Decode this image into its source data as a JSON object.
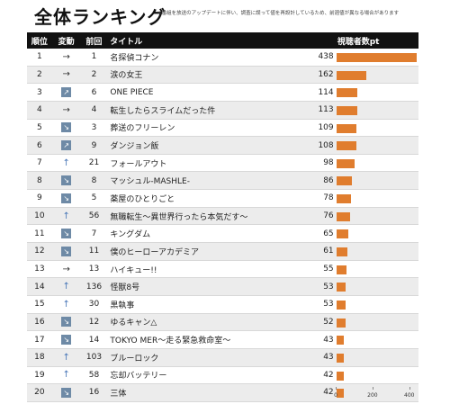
{
  "title": "全体ランキング",
  "note": "※番組を放送のアップデートに伴い、調査に誤って値を再設計しているため、前週値が異なる場合があります",
  "headers": {
    "rank": "順位",
    "move": "変動",
    "prev": "前回",
    "title": "タイトル",
    "value": "視聴者数pt"
  },
  "chart_data": {
    "type": "bar",
    "orientation": "horizontal",
    "title": "全体ランキング",
    "xlabel": "",
    "ylabel": "視聴者数pt",
    "xlim": [
      0,
      450
    ],
    "xticks": [
      0,
      200,
      400
    ],
    "bar_color": "#e07d2e",
    "rows": [
      {
        "rank": "1",
        "move": "→",
        "prev": "1",
        "title": "名探偵コナン",
        "value": 438
      },
      {
        "rank": "2",
        "move": "→",
        "prev": "2",
        "title": "涙の女王",
        "value": 162
      },
      {
        "rank": "3",
        "move": "↗",
        "prev": "6",
        "title": "ONE PIECE",
        "value": 114
      },
      {
        "rank": "4",
        "move": "→",
        "prev": "4",
        "title": "転生したらスライムだった件",
        "value": 113
      },
      {
        "rank": "5",
        "move": "↘",
        "prev": "3",
        "title": "葬送のフリーレン",
        "value": 109
      },
      {
        "rank": "6",
        "move": "↗",
        "prev": "9",
        "title": "ダンジョン飯",
        "value": 108
      },
      {
        "rank": "7",
        "move": "↑",
        "prev": "21",
        "title": "フォールアウト",
        "value": 98
      },
      {
        "rank": "8",
        "move": "↘",
        "prev": "8",
        "title": "マッシュル-MASHLE-",
        "value": 86
      },
      {
        "rank": "9",
        "move": "↘",
        "prev": "5",
        "title": "薬屋のひとりごと",
        "value": 78
      },
      {
        "rank": "10",
        "move": "↑",
        "prev": "56",
        "title": "無職転生～異世界行ったら本気だす～",
        "value": 76
      },
      {
        "rank": "11",
        "move": "↘",
        "prev": "7",
        "title": "キングダム",
        "value": 65
      },
      {
        "rank": "12",
        "move": "↘",
        "prev": "11",
        "title": "僕のヒーローアカデミア",
        "value": 61
      },
      {
        "rank": "13",
        "move": "→",
        "prev": "13",
        "title": "ハイキュー!!",
        "value": 55
      },
      {
        "rank": "14",
        "move": "↑",
        "prev": "136",
        "title": "怪獣8号",
        "value": 53
      },
      {
        "rank": "15",
        "move": "↑",
        "prev": "30",
        "title": "黒執事",
        "value": 53
      },
      {
        "rank": "16",
        "move": "↘",
        "prev": "12",
        "title": "ゆるキャン△",
        "value": 52
      },
      {
        "rank": "17",
        "move": "↘",
        "prev": "14",
        "title": "TOKYO MER～走る緊急救命室～",
        "value": 43
      },
      {
        "rank": "18",
        "move": "↑",
        "prev": "103",
        "title": "ブルーロック",
        "value": 43
      },
      {
        "rank": "19",
        "move": "↑",
        "prev": "58",
        "title": "忘却バッテリー",
        "value": 42
      },
      {
        "rank": "20",
        "move": "↘",
        "prev": "16",
        "title": "三体",
        "value": 42
      }
    ]
  }
}
